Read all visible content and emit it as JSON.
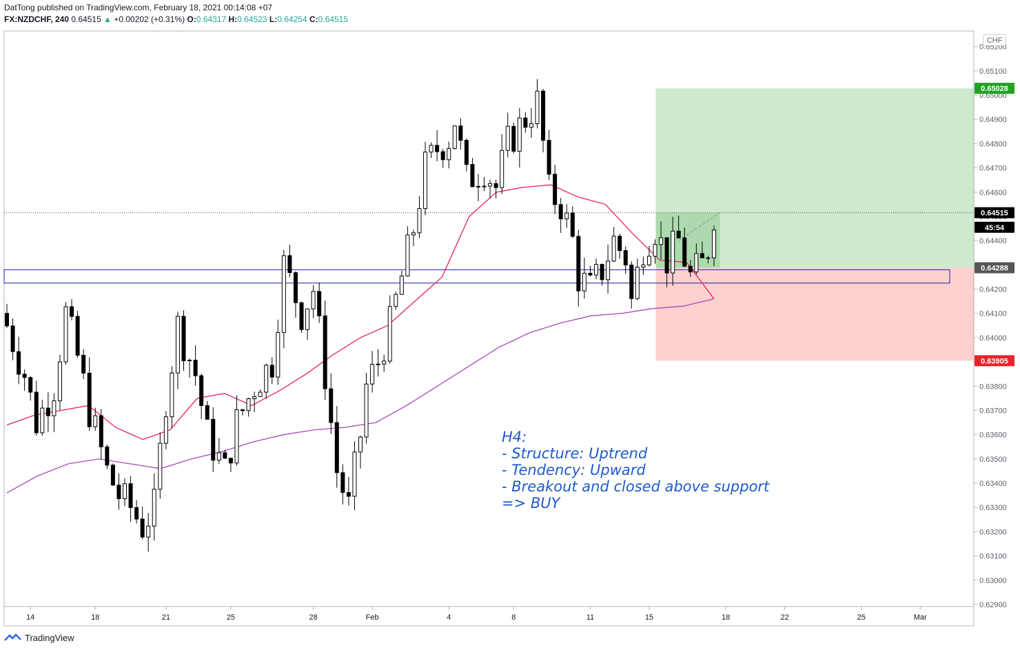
{
  "header": {
    "line1": "DatTong published on TradingView.com, February 18, 2021 00:14:08 +07",
    "symbol": "FX:NZDCHF, 240",
    "last": "0.64515",
    "change_arrow": "▲",
    "change": "+0.00202 (+0.31%)",
    "o_label": "O:",
    "o_value": "0.64317",
    "h_label": "H:",
    "h_value": "0.64523",
    "l_label": "L:",
    "l_value": "0.64254",
    "c_label": "C:",
    "c_value": "0.64515"
  },
  "currency_badge": "CHF",
  "watermark": "TradingView",
  "annotation": [
    "H4:",
    "- Structure: Uptrend",
    "- Tendency: Upward",
    "- Breakout and closed above support",
    "=> BUY"
  ],
  "colors": {
    "up_body": "#ffffff",
    "down_body": "#000000",
    "ema_short": "#e91e63",
    "ema_long": "#ab47bc",
    "target_zone": "#4caf50",
    "stop_zone": "#f44336",
    "support_box": "#1a1ab4",
    "annotation": "#1e5ac9"
  },
  "chart_data": {
    "type": "candlestick",
    "symbol": "FX:NZDCHF",
    "interval": "240",
    "ylim": [
      0.6289,
      0.6529
    ],
    "y_ticks": [
      "0.62900",
      "0.63000",
      "0.63100",
      "0.63200",
      "0.63300",
      "0.63400",
      "0.63500",
      "0.63600",
      "0.63700",
      "0.63800",
      "0.63900",
      "0.64000",
      "0.64100",
      "0.64200",
      "0.64300",
      "0.64400",
      "0.64500",
      "0.64600",
      "0.64700",
      "0.64800",
      "0.64900",
      "0.65000",
      "0.65100",
      "0.65200"
    ],
    "x_ticks": [
      "14",
      "18",
      "21",
      "25",
      "28",
      "Feb",
      "4",
      "8",
      "11",
      "15",
      "18",
      "22",
      "25",
      "Mar"
    ],
    "price_labels": [
      {
        "text": "0.65028",
        "value": 0.65028,
        "color": "#22a024"
      },
      {
        "text": "0.64515",
        "value": 0.64515,
        "color": "#000000"
      },
      {
        "text": "45:54",
        "value": 0.64455,
        "color": "#000000"
      },
      {
        "text": "0.64288",
        "value": 0.64288,
        "color": "#555555"
      },
      {
        "text": "0.63905",
        "value": 0.63905,
        "color": "#e8222a"
      }
    ],
    "position": {
      "entry": 0.64288,
      "target": 0.65028,
      "stop": 0.63905
    },
    "support_zone": [
      0.64225,
      0.6428
    ],
    "candles_count": 120,
    "key_closes": [
      {
        "date": "14",
        "close": 0.6385
      },
      {
        "date": "18",
        "close": 0.6363
      },
      {
        "date": "21",
        "close": 0.6325
      },
      {
        "date": "25",
        "close": 0.635
      },
      {
        "date": "28",
        "close": 0.642
      },
      {
        "date": "Feb",
        "close": 0.637
      },
      {
        "date": "4",
        "close": 0.648
      },
      {
        "date": "8",
        "close": 0.649
      },
      {
        "date": "11",
        "close": 0.643
      },
      {
        "date": "15",
        "close": 0.644
      },
      {
        "date": "18",
        "close": 0.64515
      }
    ],
    "series": [
      {
        "values": [
          0.6364,
          0.6368,
          0.637,
          0.6372,
          0.6363,
          0.6358,
          0.6362,
          0.6375,
          0.6377,
          0.6372,
          0.6378,
          0.6385,
          0.6393,
          0.64,
          0.6405,
          0.6415,
          0.6425,
          0.645,
          0.646,
          0.6462,
          0.6463,
          0.6458,
          0.6455,
          0.6443,
          0.6432,
          0.6431,
          0.6416
        ]
      },
      {
        "values": [
          0.6336,
          0.6343,
          0.6348,
          0.635,
          0.6348,
          0.6346,
          0.635,
          0.6353,
          0.6357,
          0.636,
          0.6362,
          0.6363,
          0.6365,
          0.6372,
          0.638,
          0.6388,
          0.6396,
          0.6402,
          0.6406,
          0.6409,
          0.641,
          0.6412,
          0.6413,
          0.6416
        ]
      }
    ]
  }
}
